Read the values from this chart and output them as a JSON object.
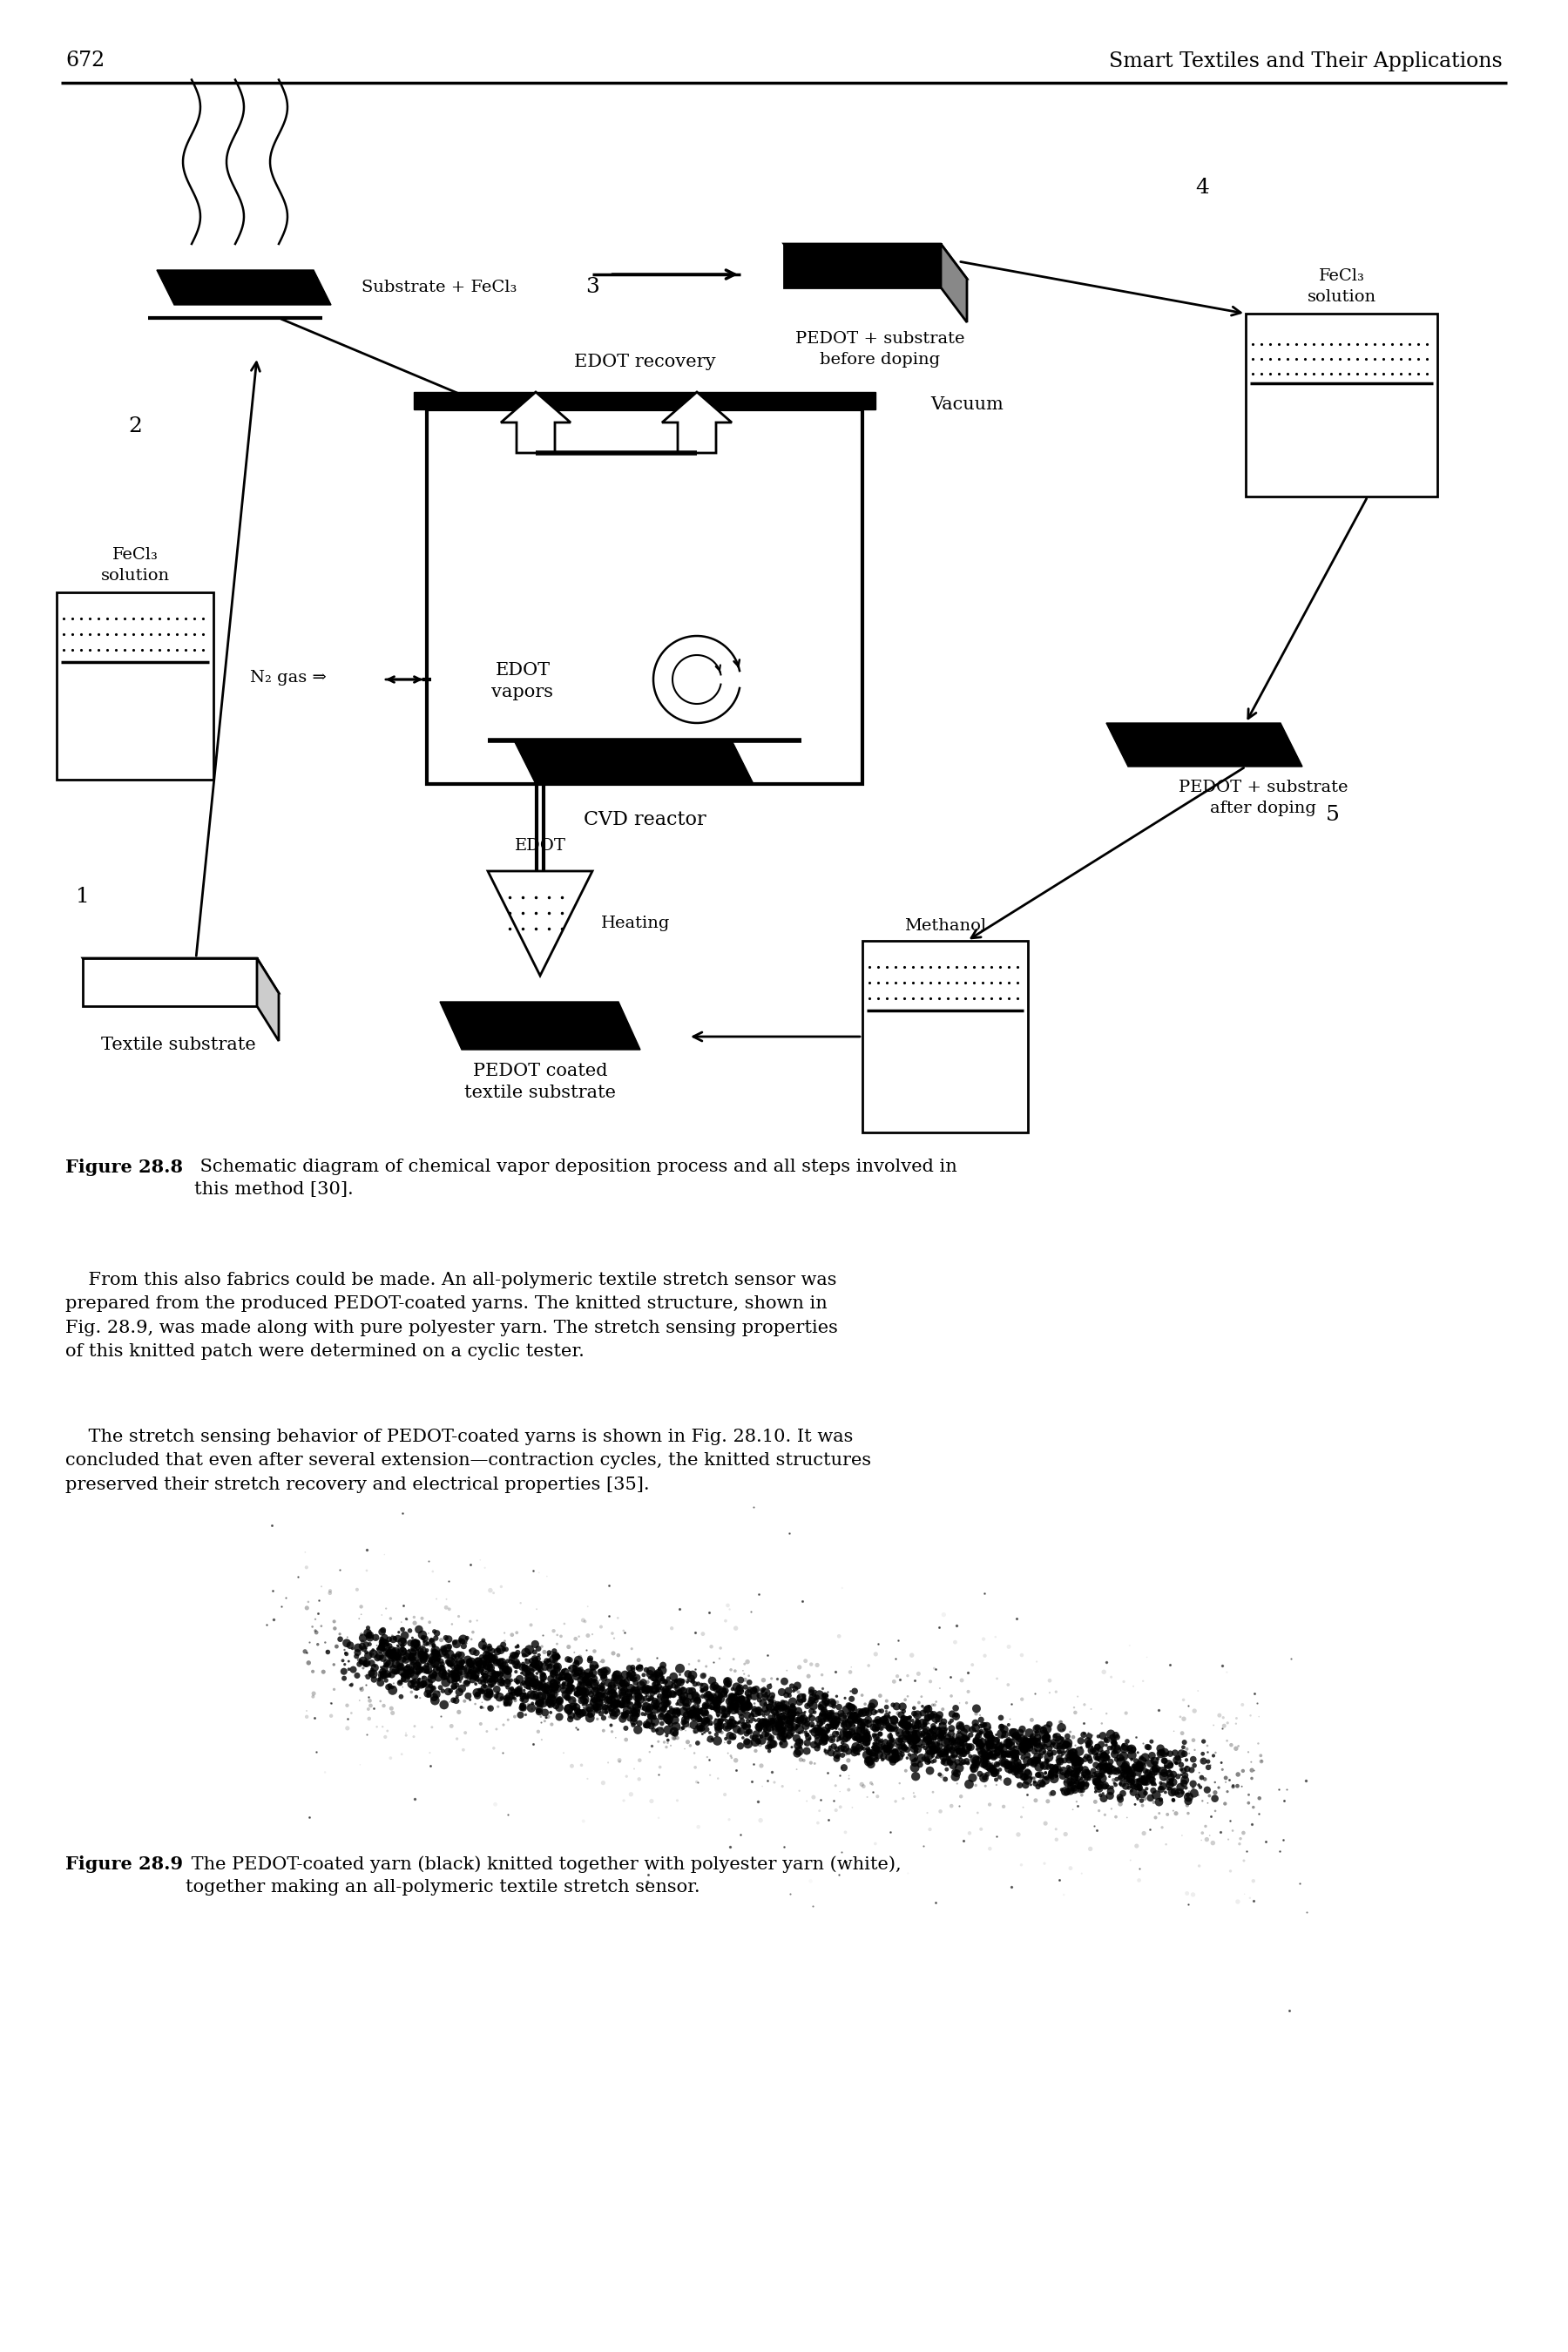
{
  "page_number": "672",
  "page_header": "Smart Textiles and Their Applications",
  "fig1_caption_bold": "Figure 28.8",
  "fig1_caption_rest": " Schematic diagram of chemical vapor deposition process and all steps involved in\nthis method [30].",
  "fig2_caption_bold": "Figure 28.9",
  "fig2_caption_rest_italic1": "black",
  "fig2_caption_rest_italic2": "white",
  "fig2_caption_pre": " The PEDOT-coated yarn (",
  "fig2_caption_mid": ") knitted together with polyester yarn (",
  "fig2_caption_post": "),\ntogether making an all-polymeric textile stretch sensor.",
  "para1": "    From this also fabrics could be made. An all-polymeric textile stretch sensor was\nprepared from the produced PEDOT-coated yarns. The knitted structure, shown in\nFig. 28.9, was made along with pure polyester yarn. The stretch sensing properties\nof this knitted patch were determined on a cyclic tester.",
  "para2": "    The stretch sensing behavior of PEDOT-coated yarns is shown in Fig. 28.10. It was\nconcluded that even after several extension—contraction cycles, the knitted structures\npreserved their stretch recovery and electrical properties [35].",
  "bg": "#ffffff",
  "black": "#000000"
}
